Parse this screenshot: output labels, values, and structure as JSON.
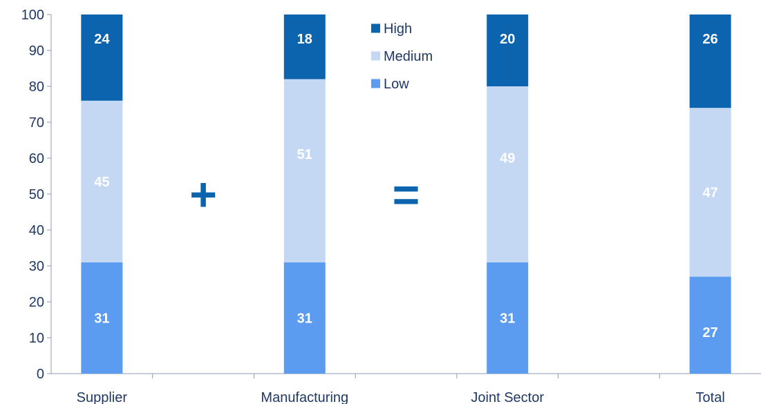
{
  "chart_data": {
    "type": "bar",
    "stacked": true,
    "categories": [
      "Supplier",
      "Manufacturing",
      "Joint Sector",
      "Total"
    ],
    "series": [
      {
        "name": "Low",
        "color": "#5b9bf0",
        "values": [
          31,
          31,
          31,
          27
        ]
      },
      {
        "name": "Medium",
        "color": "#c4d8f3",
        "values": [
          45,
          51,
          49,
          47
        ]
      },
      {
        "name": "High",
        "color": "#0b64ad",
        "values": [
          24,
          18,
          20,
          26
        ]
      }
    ],
    "ylim": [
      0,
      100
    ],
    "yticks": [
      0,
      10,
      20,
      30,
      40,
      50,
      60,
      70,
      80,
      90,
      100
    ],
    "grid": false,
    "legend": {
      "position": "top-center",
      "order": [
        "High",
        "Medium",
        "Low"
      ]
    },
    "annotations": [
      {
        "text": "+",
        "between": [
          "Supplier",
          "Manufacturing"
        ],
        "color": "#0b64ad"
      },
      {
        "text": "=",
        "between": [
          "Manufacturing",
          "Joint Sector"
        ],
        "color": "#0b64ad"
      }
    ],
    "title": "",
    "xlabel": "",
    "ylabel": ""
  }
}
